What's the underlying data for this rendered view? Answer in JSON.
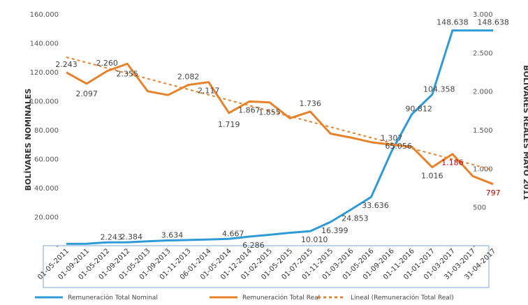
{
  "chart_data": {
    "type": "line",
    "categories": [
      "01-05-2011",
      "01-09-2011",
      "01-05-2012",
      "01-09-2012",
      "01-05-2013",
      "01-09-2013",
      "01-11-2013",
      "06-01-2014",
      "01-05-2014",
      "01-12-2014",
      "01-02-2015",
      "01-05-2015",
      "01-07-2015",
      "01-11-2015",
      "01-03-2016",
      "01-05-2016",
      "01-09-2016",
      "01-11-2016",
      "01-01-2017",
      "01-03-2017",
      "31-03-2017",
      "31-04-2017"
    ],
    "y_axis_label": "BOLÍVARES NOMINALES",
    "y2_axis_label": "BOLÍVARES REALES MAYO 2011",
    "ylim": [
      0,
      160000
    ],
    "y2lim": [
      0,
      3000
    ],
    "y_ticks": [
      "-",
      "20.000",
      "40.000",
      "60.000",
      "80.000",
      "100.000",
      "120.000",
      "140.000",
      "160.000"
    ],
    "y2_ticks": [
      "-",
      "500",
      "1.000",
      "1.500",
      "2.000",
      "2.500",
      "3.000"
    ],
    "series": [
      {
        "name": "Remuneración Total Nominal",
        "axis": "left",
        "color": "#2e9bd6",
        "values": [
          1250,
          1360,
          2243,
          2384,
          3034,
          3634,
          3900,
          4280,
          4667,
          6286,
          7500,
          8900,
          10010,
          16399,
          24853,
          33636,
          65056,
          90812,
          104358,
          148638,
          148638,
          148638
        ],
        "labels": [
          "",
          "",
          "2.243",
          "2.384",
          "",
          "3.634",
          "",
          "",
          "4.667",
          "6.286",
          "",
          "",
          "10.010",
          "16.399",
          "24.853",
          "33.636",
          "65.056",
          "90.812",
          "104.358",
          "148.638",
          "",
          "148.638"
        ]
      },
      {
        "name": "Remuneración Total Real",
        "axis": "right",
        "color": "#e8822a",
        "values": [
          2243,
          2097,
          2260,
          2355,
          2000,
          1950,
          2082,
          2117,
          1719,
          1867,
          1855,
          1650,
          1736,
          1450,
          1400,
          1340,
          1307,
          1280,
          1016,
          1186,
          900,
          797
        ],
        "labels": [
          "2.243",
          "2.097",
          "2.260",
          "2.355",
          "",
          "",
          "2.082",
          "2.117",
          "1.719",
          "1.867",
          "1.855",
          "",
          "1.736",
          "",
          "",
          "",
          "1.307",
          "",
          "1.016",
          "1.186",
          "",
          "797"
        ]
      },
      {
        "name": "Lineal (Remuneración Total Real)",
        "axis": "right",
        "color": "#e8822a",
        "dashed": true,
        "trend": [
          2440,
          980
        ]
      }
    ]
  },
  "colors": {
    "nominal": "#2e9bd6",
    "real": "#e8822a",
    "highlight": "#c00000"
  }
}
